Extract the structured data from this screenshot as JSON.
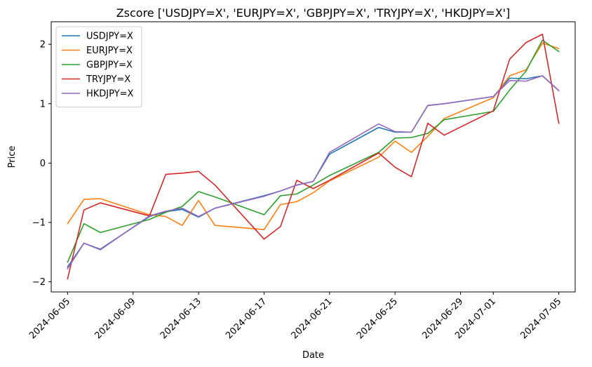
{
  "chart_data": {
    "type": "line",
    "title": "Zscore ['USDJPY=X', 'EURJPY=X', 'GBPJPY=X', 'TRYJPY=X', 'HKDJPY=X']",
    "xlabel": "Date",
    "ylabel": "Price",
    "ylim": [
      -2.17,
      2.38
    ],
    "yticks": [
      -2,
      -1,
      0,
      1,
      2
    ],
    "ytick_labels": [
      "−2",
      "−1",
      "0",
      "1",
      "2"
    ],
    "xlim": [
      "2024-06-04",
      "2024-07-06"
    ],
    "xticks": [
      "2024-06-05",
      "2024-06-09",
      "2024-06-13",
      "2024-06-17",
      "2024-06-21",
      "2024-06-25",
      "2024-06-29",
      "2024-07-01",
      "2024-07-05"
    ],
    "legend_position": "top-left",
    "grid": false,
    "series": [
      {
        "name": "USDJPY=X",
        "color": "#1f77b4",
        "x": [
          "2024-06-05",
          "2024-06-06",
          "2024-06-07",
          "2024-06-10",
          "2024-06-11",
          "2024-06-12",
          "2024-06-13",
          "2024-06-14",
          "2024-06-17",
          "2024-06-18",
          "2024-06-19",
          "2024-06-20",
          "2024-06-21",
          "2024-06-24",
          "2024-06-25",
          "2024-06-26",
          "2024-06-27",
          "2024-06-28",
          "2024-07-01",
          "2024-07-02",
          "2024-07-03",
          "2024-07-04",
          "2024-07-05"
        ],
        "y": [
          -1.75,
          -1.35,
          -1.45,
          -0.9,
          -0.82,
          -0.78,
          -0.91,
          -0.76,
          -0.55,
          -0.47,
          -0.37,
          -0.31,
          0.15,
          0.6,
          0.52,
          0.52,
          0.97,
          1.0,
          1.12,
          1.43,
          1.42,
          1.47,
          1.22
        ]
      },
      {
        "name": "EURJPY=X",
        "color": "#ff7f0e",
        "x": [
          "2024-06-05",
          "2024-06-06",
          "2024-06-07",
          "2024-06-10",
          "2024-06-11",
          "2024-06-12",
          "2024-06-13",
          "2024-06-14",
          "2024-06-17",
          "2024-06-18",
          "2024-06-19",
          "2024-06-20",
          "2024-06-21",
          "2024-06-24",
          "2024-06-25",
          "2024-06-26",
          "2024-06-27",
          "2024-06-28",
          "2024-07-01",
          "2024-07-02",
          "2024-07-03",
          "2024-07-04",
          "2024-07-05"
        ],
        "y": [
          -1.02,
          -0.61,
          -0.6,
          -0.87,
          -0.9,
          -1.05,
          -0.63,
          -1.05,
          -1.12,
          -0.7,
          -0.65,
          -0.5,
          -0.3,
          0.1,
          0.37,
          0.18,
          0.45,
          0.75,
          1.1,
          1.47,
          1.57,
          2.02,
          1.93
        ]
      },
      {
        "name": "GBPJPY=X",
        "color": "#2ca02c",
        "x": [
          "2024-06-05",
          "2024-06-06",
          "2024-06-07",
          "2024-06-10",
          "2024-06-11",
          "2024-06-12",
          "2024-06-13",
          "2024-06-14",
          "2024-06-17",
          "2024-06-18",
          "2024-06-19",
          "2024-06-20",
          "2024-06-21",
          "2024-06-24",
          "2024-06-25",
          "2024-06-26",
          "2024-06-27",
          "2024-06-28",
          "2024-07-01",
          "2024-07-02",
          "2024-07-03",
          "2024-07-04",
          "2024-07-05"
        ],
        "y": [
          -1.67,
          -1.02,
          -1.17,
          -0.95,
          -0.83,
          -0.73,
          -0.48,
          -0.57,
          -0.87,
          -0.55,
          -0.52,
          -0.37,
          -0.21,
          0.18,
          0.42,
          0.43,
          0.5,
          0.73,
          0.87,
          1.23,
          1.55,
          2.07,
          1.88
        ]
      },
      {
        "name": "TRYJPY=X",
        "color": "#d62728",
        "x": [
          "2024-06-05",
          "2024-06-06",
          "2024-06-07",
          "2024-06-10",
          "2024-06-11",
          "2024-06-12",
          "2024-06-13",
          "2024-06-14",
          "2024-06-17",
          "2024-06-18",
          "2024-06-19",
          "2024-06-20",
          "2024-06-21",
          "2024-06-24",
          "2024-06-25",
          "2024-06-26",
          "2024-06-27",
          "2024-06-28",
          "2024-07-01",
          "2024-07-02",
          "2024-07-03",
          "2024-07-04",
          "2024-07-05"
        ],
        "y": [
          -1.95,
          -0.79,
          -0.67,
          -0.89,
          -0.19,
          -0.17,
          -0.14,
          -0.37,
          -1.28,
          -1.07,
          -0.29,
          -0.43,
          -0.29,
          0.17,
          -0.07,
          -0.23,
          0.67,
          0.47,
          0.88,
          1.75,
          2.03,
          2.17,
          0.67
        ]
      },
      {
        "name": "HKDJPY=X",
        "color": "#9467bd",
        "x": [
          "2024-06-05",
          "2024-06-06",
          "2024-06-07",
          "2024-06-10",
          "2024-06-11",
          "2024-06-12",
          "2024-06-13",
          "2024-06-14",
          "2024-06-17",
          "2024-06-18",
          "2024-06-19",
          "2024-06-20",
          "2024-06-21",
          "2024-06-24",
          "2024-06-25",
          "2024-06-26",
          "2024-06-27",
          "2024-06-28",
          "2024-07-01",
          "2024-07-02",
          "2024-07-03",
          "2024-07-04",
          "2024-07-05"
        ],
        "y": [
          -1.78,
          -1.35,
          -1.46,
          -0.89,
          -0.81,
          -0.76,
          -0.9,
          -0.76,
          -0.56,
          -0.47,
          -0.37,
          -0.31,
          0.18,
          0.66,
          0.53,
          0.52,
          0.97,
          1.0,
          1.12,
          1.39,
          1.38,
          1.47,
          1.22
        ]
      }
    ]
  }
}
